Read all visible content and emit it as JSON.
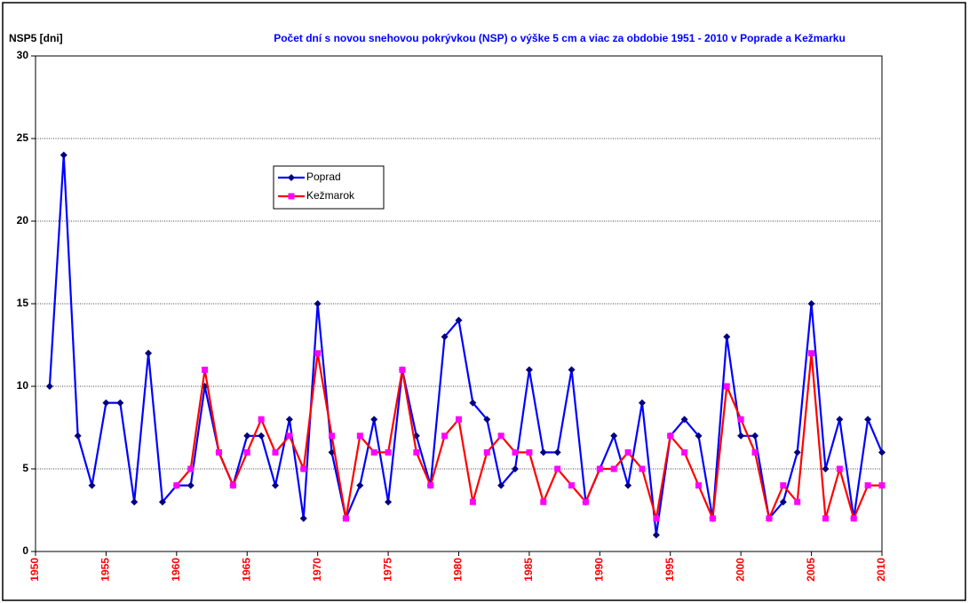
{
  "chart_data": {
    "type": "line",
    "title": "Počet dní s novou snehovou pokrývkou (NSP) o výške 5 cm a viac za obdobie 1951 - 2010 v Poprade a Kežmarku",
    "y_label": "NSP5 [dni]",
    "x": [
      1951,
      1952,
      1953,
      1954,
      1955,
      1956,
      1957,
      1958,
      1959,
      1960,
      1961,
      1962,
      1963,
      1964,
      1965,
      1966,
      1967,
      1968,
      1969,
      1970,
      1971,
      1972,
      1973,
      1974,
      1975,
      1976,
      1977,
      1978,
      1979,
      1980,
      1981,
      1982,
      1983,
      1984,
      1985,
      1986,
      1987,
      1988,
      1989,
      1990,
      1991,
      1992,
      1993,
      1994,
      1995,
      1996,
      1997,
      1998,
      1999,
      2000,
      2001,
      2002,
      2003,
      2004,
      2005,
      2006,
      2007,
      2008,
      2009,
      2010
    ],
    "series": [
      {
        "name": "Poprad",
        "color": "#0000ff",
        "marker_color": "#000080",
        "marker": "diamond",
        "values": [
          10,
          24,
          7,
          4,
          9,
          9,
          3,
          12,
          3,
          4,
          4,
          10,
          6,
          4,
          7,
          7,
          4,
          8,
          2,
          15,
          6,
          2,
          4,
          8,
          3,
          11,
          7,
          4,
          13,
          14,
          9,
          8,
          4,
          5,
          11,
          6,
          6,
          11,
          3,
          5,
          7,
          4,
          9,
          1,
          7,
          8,
          7,
          2,
          13,
          7,
          7,
          2,
          3,
          6,
          15,
          5,
          8,
          2,
          8,
          6
        ]
      },
      {
        "name": "Kežmarok",
        "color": "#ff0000",
        "marker_color": "#ff00ff",
        "marker": "square",
        "values": [
          null,
          null,
          null,
          null,
          null,
          null,
          null,
          null,
          null,
          4,
          5,
          11,
          6,
          4,
          6,
          8,
          6,
          7,
          5,
          12,
          7,
          2,
          7,
          6,
          6,
          11,
          6,
          4,
          7,
          8,
          3,
          6,
          7,
          6,
          6,
          3,
          5,
          4,
          3,
          5,
          5,
          6,
          5,
          2,
          7,
          6,
          4,
          2,
          10,
          8,
          6,
          2,
          4,
          3,
          12,
          2,
          5,
          2,
          4,
          4
        ]
      }
    ],
    "xlim": [
      1950,
      2010
    ],
    "xticks": [
      1950,
      1955,
      1960,
      1965,
      1970,
      1975,
      1980,
      1985,
      1990,
      1995,
      2000,
      2005,
      2010
    ],
    "ylim": [
      0,
      30
    ],
    "yticks": [
      0,
      5,
      10,
      15,
      20,
      25,
      30
    ],
    "grid": true
  }
}
